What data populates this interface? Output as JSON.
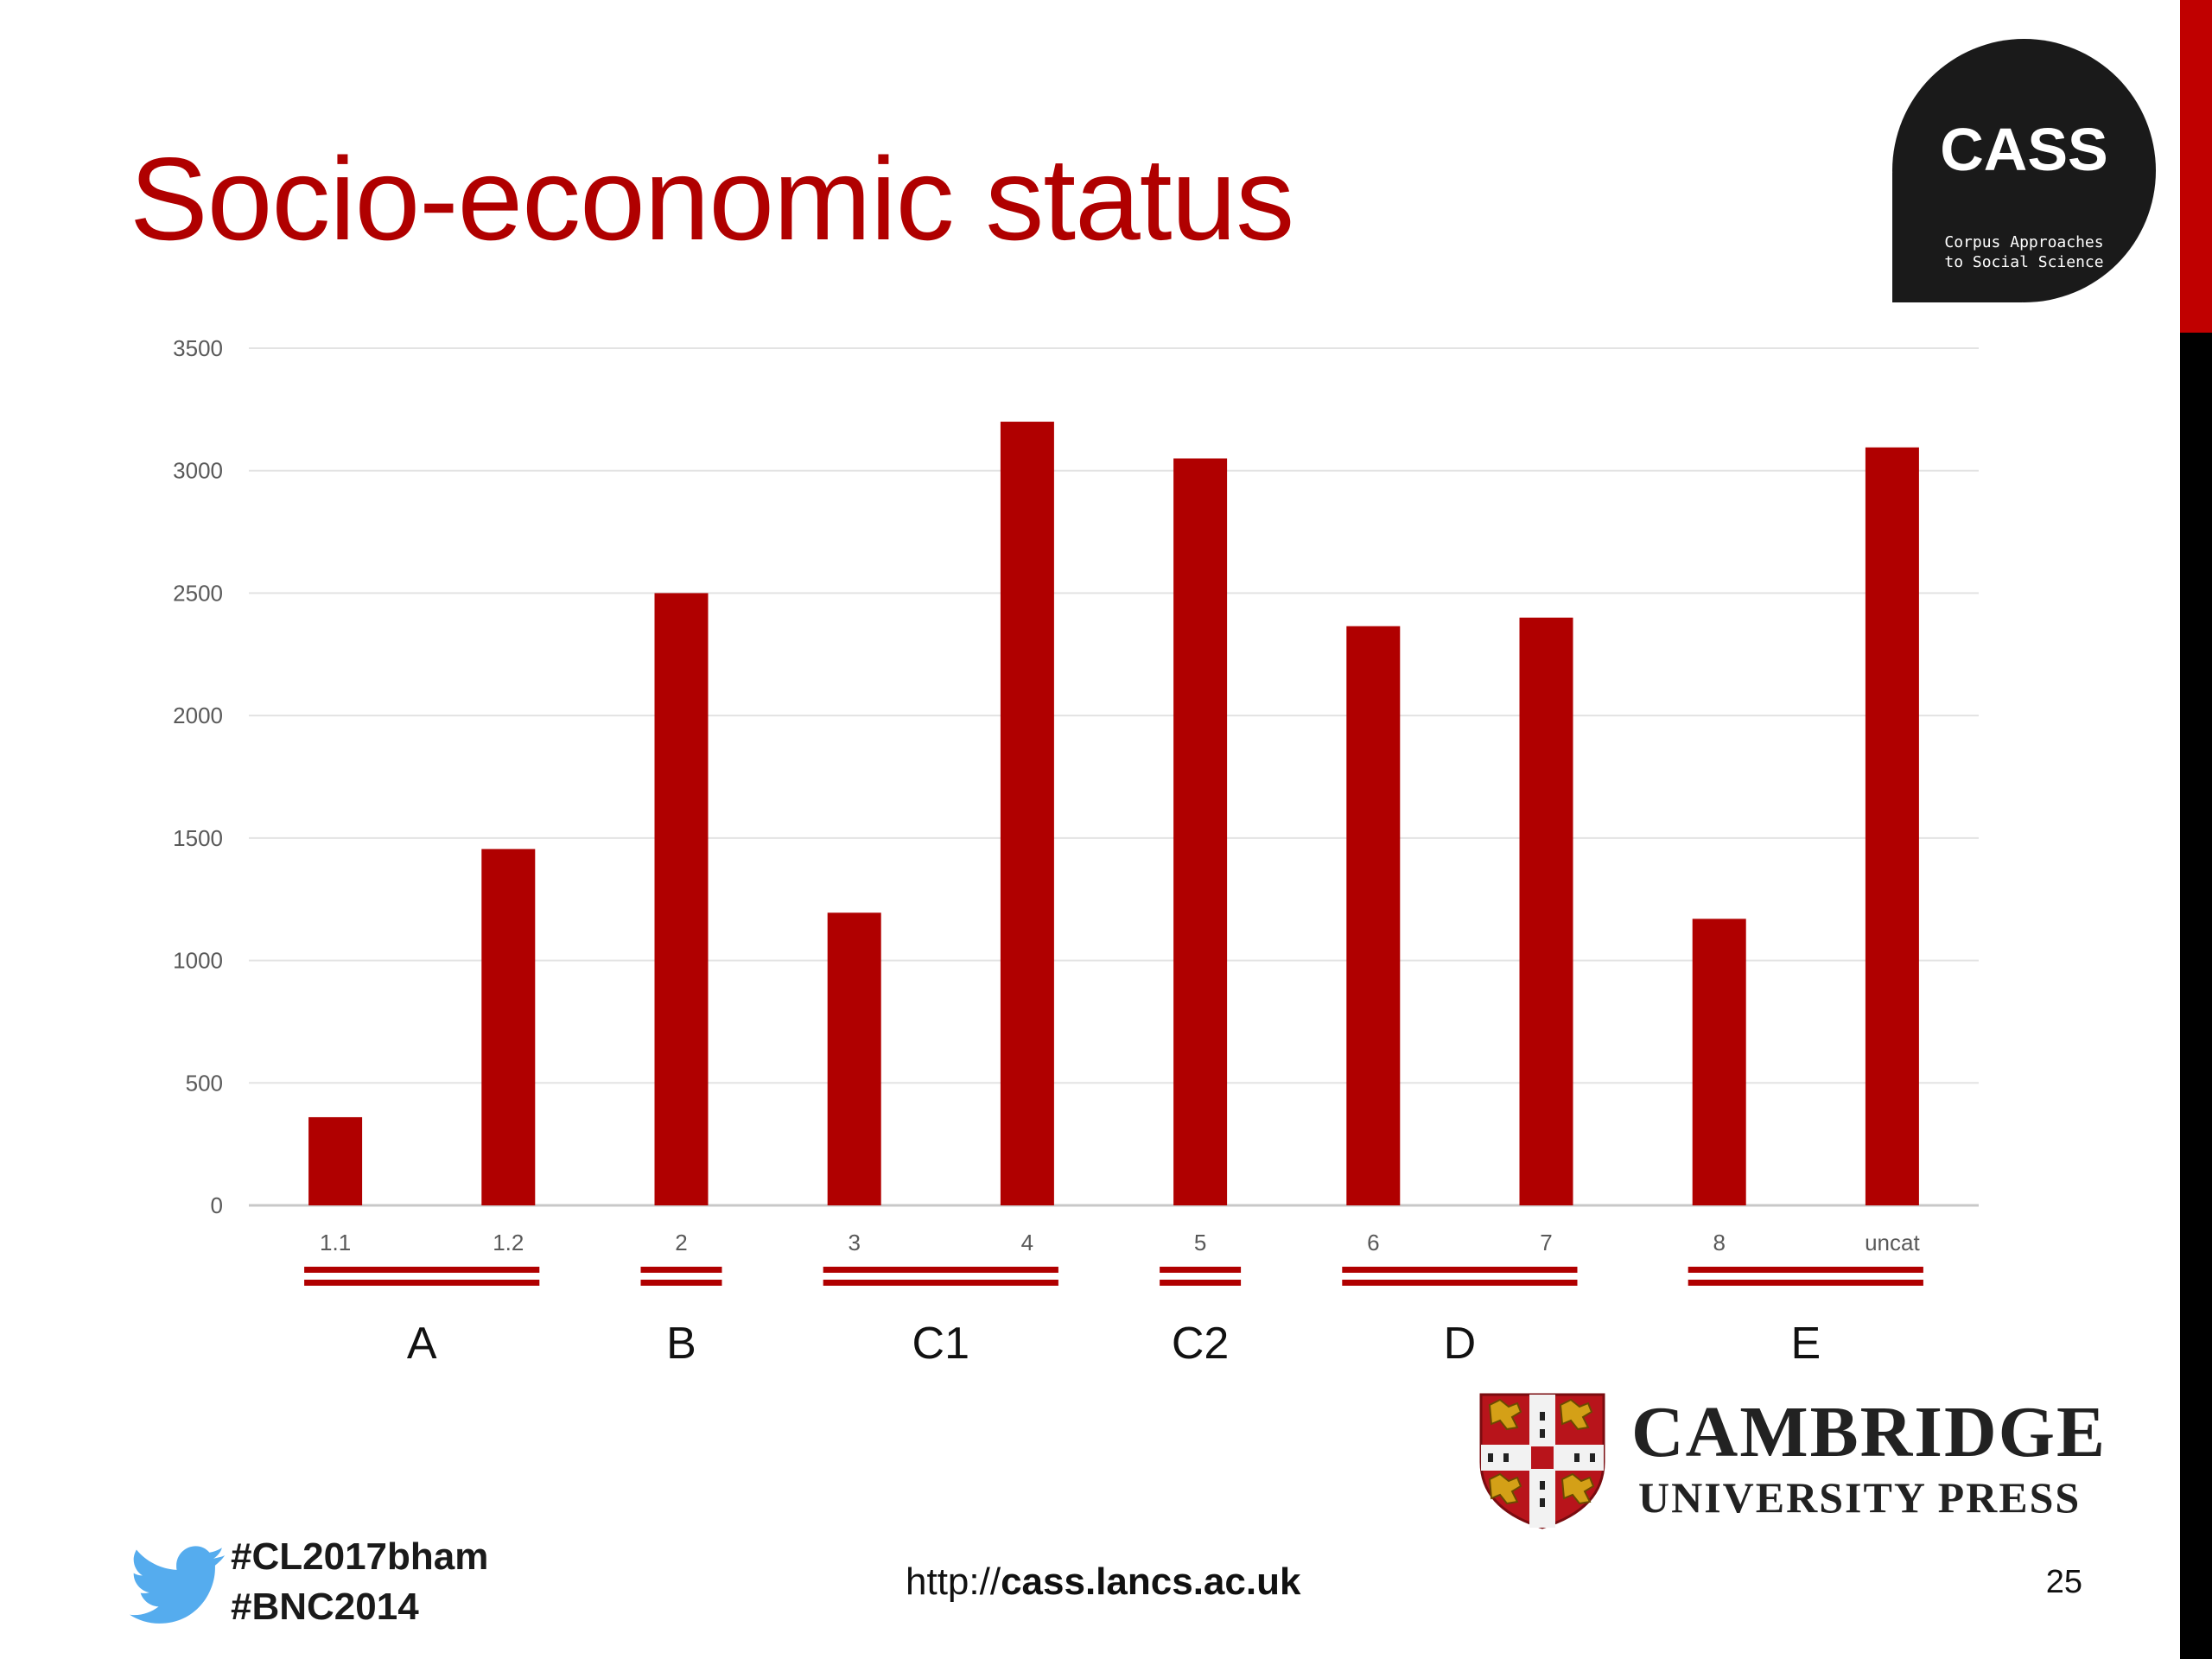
{
  "slide": {
    "title": "Socio-economic status",
    "page_number": "25",
    "accent_color": "#b00000",
    "edge_bar_colors": {
      "top": "#c00000",
      "bottom": "#000000"
    }
  },
  "cass_logo": {
    "name": "CASS",
    "subtitle_line1": "Corpus Approaches",
    "subtitle_line2": "to Social Science"
  },
  "publisher_logo": {
    "name": "CAMBRIDGE",
    "subtitle": "UNIVERSITY PRESS",
    "icon": "cambridge-crest-icon"
  },
  "footer": {
    "hashtags": [
      "#CL2017bham",
      "#BNC2014"
    ],
    "url_prefix": "http://",
    "url_host": "cass.lancs.ac.uk",
    "icon": "twitter-bird-icon",
    "icon_color": "#55acee"
  },
  "chart_data": {
    "type": "bar",
    "categories": [
      "1.1",
      "1.2",
      "2",
      "3",
      "4",
      "5",
      "6",
      "7",
      "8",
      "uncat"
    ],
    "values": [
      360,
      1455,
      2500,
      1195,
      3200,
      3050,
      2365,
      2400,
      1170,
      3095
    ],
    "ylim": [
      0,
      3500
    ],
    "yticks": [
      0,
      500,
      1000,
      1500,
      2000,
      2500,
      3000,
      3500
    ],
    "grid": true,
    "bar_color": "#b00000",
    "title": "",
    "xlabel": "",
    "ylabel": "",
    "groups": [
      {
        "label": "A",
        "from": "1.1",
        "to": "1.2"
      },
      {
        "label": "B",
        "from": "2",
        "to": "2"
      },
      {
        "label": "C1",
        "from": "3",
        "to": "4"
      },
      {
        "label": "C2",
        "from": "5",
        "to": "5"
      },
      {
        "label": "D",
        "from": "6",
        "to": "7"
      },
      {
        "label": "E",
        "from": "8",
        "to": "uncat"
      }
    ]
  }
}
